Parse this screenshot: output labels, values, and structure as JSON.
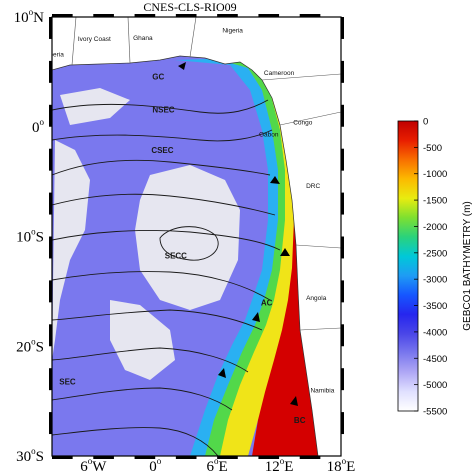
{
  "title": "CNES-CLS-RIO09",
  "lat_labels": [
    {
      "text": "10",
      "hemi": "N",
      "lat": 10
    },
    {
      "text": "0",
      "hemi": "",
      "lat": 0
    },
    {
      "text": "10",
      "hemi": "S",
      "lat": -10
    },
    {
      "text": "20",
      "hemi": "S",
      "lat": -20
    },
    {
      "text": "30",
      "hemi": "S",
      "lat": -30
    }
  ],
  "lon_labels": [
    {
      "text": "6",
      "hemi": "W",
      "lon": -6
    },
    {
      "text": "0",
      "hemi": "",
      "lon": 0
    },
    {
      "text": "6",
      "hemi": "E",
      "lon": 6
    },
    {
      "text": "12",
      "hemi": "E",
      "lon": 12
    },
    {
      "text": "18",
      "hemi": "E",
      "lon": 18
    }
  ],
  "map_extent": {
    "lon_min": -10,
    "lon_max": 18,
    "lat_min": -30,
    "lat_max": 10
  },
  "degree_symbol": "o",
  "currents": [
    {
      "label": "GC",
      "lon": 0.3,
      "lat": 4.3
    },
    {
      "label": "NSEC",
      "lon": 0.8,
      "lat": 1.3
    },
    {
      "label": "CSEC",
      "lon": 0.7,
      "lat": -2.4
    },
    {
      "label": "SECC",
      "lon": 2.0,
      "lat": -12.0
    },
    {
      "label": "AC",
      "lon": 10.8,
      "lat": -16.3
    },
    {
      "label": "SEC",
      "lon": -8.5,
      "lat": -23.5
    },
    {
      "label": "BC",
      "lon": 14.0,
      "lat": -27.0
    }
  ],
  "countries": [
    {
      "label": "Liberia",
      "lon": -9.8,
      "lat": 6.4
    },
    {
      "label": "Ivory Coast",
      "lon": -5.9,
      "lat": 7.8
    },
    {
      "label": "Ghana",
      "lon": -1.2,
      "lat": 7.9
    },
    {
      "label": "Nigeria",
      "lon": 7.5,
      "lat": 8.6
    },
    {
      "label": "Cameroon",
      "lon": 12.0,
      "lat": 4.7
    },
    {
      "label": "Congo",
      "lon": 14.3,
      "lat": 0.2
    },
    {
      "label": "Gabon",
      "lon": 11.0,
      "lat": -0.9
    },
    {
      "label": "DRC",
      "lon": 15.3,
      "lat": -5.6
    },
    {
      "label": "Angola",
      "lon": 15.6,
      "lat": -15.8
    },
    {
      "label": "Namibia",
      "lon": 16.2,
      "lat": -24.2
    }
  ],
  "colorbar": {
    "title": "GEBCO1 BATHYMETRY (m)",
    "ticks": [
      "0",
      "-500",
      "-1000",
      "-1500",
      "-2000",
      "-2500",
      "-3000",
      "-3500",
      "-4000",
      "-4500",
      "-5000",
      "-5500"
    ],
    "values": [
      0,
      -500,
      -1000,
      -1500,
      -2000,
      -2500,
      -3000,
      -3500,
      -4000,
      -4500,
      -5000,
      -5500
    ],
    "range": [
      -5500,
      0
    ],
    "colors": [
      "#ffffff",
      "#e0e0ff",
      "#b0a8f5",
      "#7a78ee",
      "#4a46e8",
      "#2626ee",
      "#1656ff",
      "#1e9cf4",
      "#00c8d8",
      "#2ad27c",
      "#7ee030",
      "#e8ec10",
      "#fcba00",
      "#f86e00",
      "#e81e00",
      "#c00000"
    ]
  },
  "colors": {
    "land": "#ffffff",
    "deep_ocean": "#7a78ee",
    "abyssal": "#e6e6f0",
    "shelf": "#d40000",
    "slope_green": "#52d84a",
    "slope_yellow": "#f0e418",
    "slope_cyan": "#2ab0f2"
  }
}
